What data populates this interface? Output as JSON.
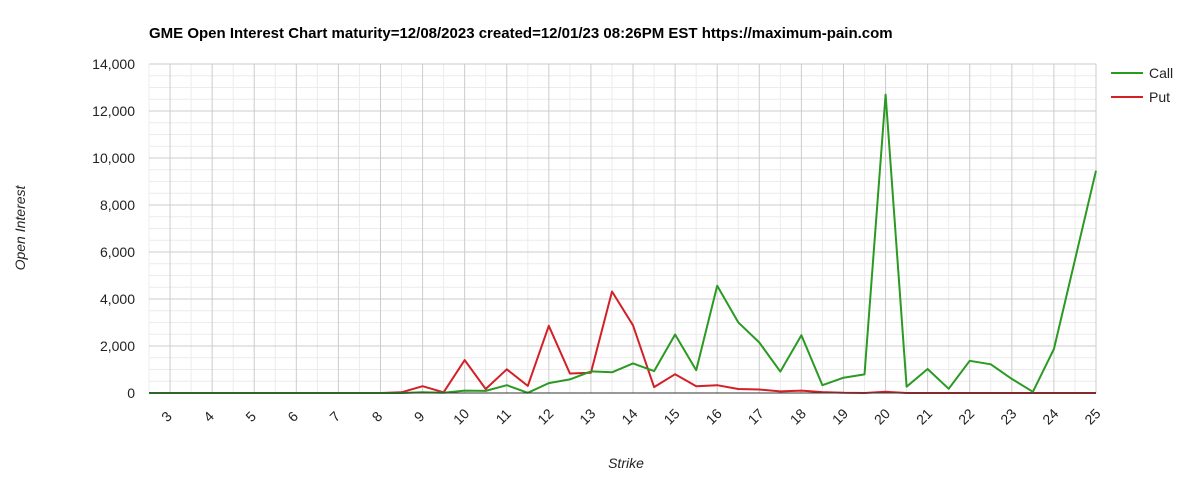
{
  "chart_data": {
    "type": "line",
    "title": "GME Open Interest Chart maturity=12/08/2023 created=12/01/23 08:26PM EST https://maximum-pain.com",
    "xlabel": "Strike",
    "ylabel": "Open Interest",
    "ylim": [
      0,
      14000
    ],
    "yticks": [
      0,
      2000,
      4000,
      6000,
      8000,
      10000,
      12000,
      14000
    ],
    "ytick_labels": [
      "0",
      "2,000",
      "4,000",
      "6,000",
      "8,000",
      "10,000",
      "12,000",
      "14,000"
    ],
    "xlim": [
      2.5,
      25
    ],
    "xticks": [
      3,
      4,
      5,
      6,
      7,
      8,
      9,
      10,
      11,
      12,
      13,
      14,
      15,
      16,
      17,
      18,
      19,
      20,
      21,
      22,
      23,
      24,
      25
    ],
    "xtick_labels": [
      "3",
      "4",
      "5",
      "6",
      "7",
      "8",
      "9",
      "10",
      "11",
      "12",
      "13",
      "14",
      "15",
      "16",
      "17",
      "18",
      "19",
      "20",
      "21",
      "22",
      "23",
      "24",
      "25"
    ],
    "grid": true,
    "legend_position": "right",
    "series": [
      {
        "name": "Call",
        "color": "#2a9a22",
        "points": [
          [
            2.5,
            0
          ],
          [
            3,
            0
          ],
          [
            4,
            0
          ],
          [
            5,
            0
          ],
          [
            6,
            0
          ],
          [
            7,
            0
          ],
          [
            8,
            0
          ],
          [
            8.5,
            0
          ],
          [
            9,
            30
          ],
          [
            9.5,
            10
          ],
          [
            10,
            100
          ],
          [
            10.5,
            90
          ],
          [
            11,
            330
          ],
          [
            11.5,
            10
          ],
          [
            12,
            420
          ],
          [
            12.5,
            580
          ],
          [
            13,
            920
          ],
          [
            13.5,
            880
          ],
          [
            14,
            1260
          ],
          [
            14.5,
            930
          ],
          [
            15,
            2490
          ],
          [
            15.5,
            970
          ],
          [
            16,
            4560
          ],
          [
            16.5,
            3010
          ],
          [
            17,
            2150
          ],
          [
            17.5,
            910
          ],
          [
            18,
            2460
          ],
          [
            18.5,
            330
          ],
          [
            19,
            650
          ],
          [
            19.5,
            790
          ],
          [
            20,
            12700
          ],
          [
            20.5,
            270
          ],
          [
            21,
            1020
          ],
          [
            21.5,
            180
          ],
          [
            22,
            1370
          ],
          [
            22.5,
            1220
          ],
          [
            23,
            600
          ],
          [
            23.5,
            50
          ],
          [
            24,
            1870
          ],
          [
            25,
            9460
          ]
        ]
      },
      {
        "name": "Put",
        "color": "#d32027",
        "points": [
          [
            2.5,
            0
          ],
          [
            3,
            0
          ],
          [
            4,
            0
          ],
          [
            5,
            0
          ],
          [
            6,
            0
          ],
          [
            7,
            0
          ],
          [
            8,
            0
          ],
          [
            8.5,
            30
          ],
          [
            9,
            290
          ],
          [
            9.5,
            30
          ],
          [
            10,
            1400
          ],
          [
            10.5,
            170
          ],
          [
            11,
            1010
          ],
          [
            11.5,
            300
          ],
          [
            12,
            2860
          ],
          [
            12.5,
            830
          ],
          [
            13,
            860
          ],
          [
            13.5,
            4320
          ],
          [
            14,
            2880
          ],
          [
            14.5,
            250
          ],
          [
            15,
            800
          ],
          [
            15.5,
            290
          ],
          [
            16,
            330
          ],
          [
            16.5,
            170
          ],
          [
            17,
            150
          ],
          [
            17.5,
            70
          ],
          [
            18,
            100
          ],
          [
            18.5,
            40
          ],
          [
            19,
            10
          ],
          [
            19.5,
            0
          ],
          [
            20,
            50
          ],
          [
            20.5,
            0
          ],
          [
            21,
            0
          ],
          [
            22,
            0
          ],
          [
            23,
            0
          ],
          [
            24,
            0
          ],
          [
            25,
            0
          ]
        ]
      }
    ]
  }
}
